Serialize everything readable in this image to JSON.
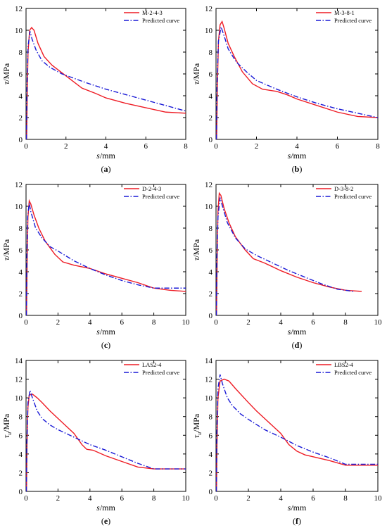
{
  "colors": {
    "measured": "#ee1c25",
    "predicted": "#1a1ad6"
  },
  "chart_data": [
    {
      "type": "line",
      "panel_label": "(a)",
      "xlabel": "s/mm",
      "ylabel": "τ/MPa",
      "xlim": [
        0,
        8
      ],
      "ylim": [
        0,
        12
      ],
      "xticks": [
        0,
        2,
        4,
        6,
        8
      ],
      "yticks": [
        0,
        2,
        4,
        6,
        8,
        10,
        12
      ],
      "legend_position": "top-right",
      "series": [
        {
          "name": "M-2-4-3",
          "style": "solid",
          "color": "#ee1c25",
          "points": [
            [
              0.03,
              0
            ],
            [
              0.06,
              4
            ],
            [
              0.1,
              8
            ],
            [
              0.18,
              10
            ],
            [
              0.28,
              10.25
            ],
            [
              0.4,
              10
            ],
            [
              0.6,
              8.8
            ],
            [
              0.9,
              7.6
            ],
            [
              1.3,
              6.8
            ],
            [
              1.8,
              6.1
            ],
            [
              2.3,
              5.4
            ],
            [
              2.8,
              4.7
            ],
            [
              3.5,
              4.2
            ],
            [
              4.0,
              3.8
            ],
            [
              5.0,
              3.3
            ],
            [
              6.0,
              2.9
            ],
            [
              7.0,
              2.5
            ],
            [
              8.0,
              2.4
            ]
          ]
        },
        {
          "name": "Predicted curve",
          "style": "dashdot",
          "color": "#1a1ad6",
          "points": [
            [
              0.02,
              0
            ],
            [
              0.05,
              5
            ],
            [
              0.1,
              8.5
            ],
            [
              0.2,
              9.9
            ],
            [
              0.3,
              9.2
            ],
            [
              0.5,
              8.2
            ],
            [
              0.8,
              7.2
            ],
            [
              1.2,
              6.6
            ],
            [
              1.8,
              6.0
            ],
            [
              3.0,
              5.2
            ],
            [
              4.0,
              4.6
            ],
            [
              5.0,
              4.1
            ],
            [
              6.0,
              3.6
            ],
            [
              7.0,
              3.1
            ],
            [
              8.0,
              2.6
            ]
          ]
        }
      ]
    },
    {
      "type": "line",
      "panel_label": "(b)",
      "xlabel": "s/mm",
      "ylabel": "τ/MPa",
      "xlim": [
        0,
        8
      ],
      "ylim": [
        0,
        12
      ],
      "xticks": [
        0,
        2,
        4,
        6,
        8
      ],
      "yticks": [
        0,
        2,
        4,
        6,
        8,
        10,
        12
      ],
      "legend_position": "top-right",
      "series": [
        {
          "name": "M-3-8-1",
          "style": "solid",
          "color": "#ee1c25",
          "points": [
            [
              0.03,
              0
            ],
            [
              0.07,
              5
            ],
            [
              0.12,
              9
            ],
            [
              0.2,
              10.5
            ],
            [
              0.3,
              10.8
            ],
            [
              0.4,
              10.2
            ],
            [
              0.6,
              8.8
            ],
            [
              0.9,
              7.6
            ],
            [
              1.3,
              6.2
            ],
            [
              1.8,
              5.1
            ],
            [
              2.3,
              4.6
            ],
            [
              3.0,
              4.4
            ],
            [
              3.5,
              4.1
            ],
            [
              4.0,
              3.7
            ],
            [
              5.0,
              3.1
            ],
            [
              6.0,
              2.5
            ],
            [
              7.0,
              2.1
            ],
            [
              8.0,
              2.0
            ]
          ]
        },
        {
          "name": "Predicted curve",
          "style": "dashdot",
          "color": "#1a1ad6",
          "points": [
            [
              0.02,
              0
            ],
            [
              0.05,
              5
            ],
            [
              0.12,
              9
            ],
            [
              0.25,
              10.3
            ],
            [
              0.4,
              9.5
            ],
            [
              0.6,
              8.3
            ],
            [
              1.0,
              7.1
            ],
            [
              1.5,
              6.2
            ],
            [
              2.0,
              5.4
            ],
            [
              3.0,
              4.6
            ],
            [
              4.0,
              3.9
            ],
            [
              5.0,
              3.3
            ],
            [
              6.0,
              2.8
            ],
            [
              7.0,
              2.4
            ],
            [
              8.0,
              2.0
            ]
          ]
        }
      ]
    },
    {
      "type": "line",
      "panel_label": "(c)",
      "xlabel": "s/mm",
      "ylabel": "τ/MPa",
      "xlim": [
        0,
        10
      ],
      "ylim": [
        0,
        12
      ],
      "xticks": [
        0,
        2,
        4,
        6,
        8,
        10
      ],
      "yticks": [
        0,
        2,
        4,
        6,
        8,
        10,
        12
      ],
      "legend_position": "top-right",
      "series": [
        {
          "name": "D-2-4-3",
          "style": "solid",
          "color": "#ee1c25",
          "points": [
            [
              0.03,
              0
            ],
            [
              0.07,
              5
            ],
            [
              0.12,
              9
            ],
            [
              0.2,
              10.5
            ],
            [
              0.3,
              10.2
            ],
            [
              0.5,
              9.2
            ],
            [
              0.8,
              8.0
            ],
            [
              1.2,
              6.8
            ],
            [
              1.8,
              5.6
            ],
            [
              2.3,
              4.9
            ],
            [
              3.0,
              4.6
            ],
            [
              4.0,
              4.3
            ],
            [
              5.0,
              3.8
            ],
            [
              6.0,
              3.4
            ],
            [
              7.0,
              3.0
            ],
            [
              8.0,
              2.5
            ],
            [
              9.0,
              2.3
            ],
            [
              10.0,
              2.2
            ]
          ]
        },
        {
          "name": "Predicted curve",
          "style": "dashdot",
          "color": "#1a1ad6",
          "points": [
            [
              0.02,
              0
            ],
            [
              0.05,
              5
            ],
            [
              0.1,
              9
            ],
            [
              0.2,
              10.3
            ],
            [
              0.3,
              9.5
            ],
            [
              0.6,
              8.0
            ],
            [
              1.0,
              7.1
            ],
            [
              1.5,
              6.3
            ],
            [
              2.0,
              5.9
            ],
            [
              3.0,
              5.0
            ],
            [
              4.0,
              4.3
            ],
            [
              5.0,
              3.7
            ],
            [
              6.0,
              3.2
            ],
            [
              7.0,
              2.8
            ],
            [
              8.0,
              2.5
            ],
            [
              9.0,
              2.5
            ],
            [
              10.0,
              2.5
            ]
          ]
        }
      ]
    },
    {
      "type": "line",
      "panel_label": "(d)",
      "xlabel": "s/mm",
      "ylabel": "τ/MPa",
      "xlim": [
        0,
        10
      ],
      "ylim": [
        0,
        12
      ],
      "xticks": [
        0,
        2,
        4,
        6,
        8,
        10
      ],
      "yticks": [
        0,
        2,
        4,
        6,
        8,
        10,
        12
      ],
      "legend_position": "top-right",
      "series": [
        {
          "name": "D-3-8-2",
          "style": "solid",
          "color": "#ee1c25",
          "points": [
            [
              0.03,
              0
            ],
            [
              0.07,
              5
            ],
            [
              0.12,
              9.5
            ],
            [
              0.2,
              11.2
            ],
            [
              0.3,
              11.0
            ],
            [
              0.5,
              9.8
            ],
            [
              0.8,
              8.5
            ],
            [
              1.2,
              7.2
            ],
            [
              1.8,
              6.0
            ],
            [
              2.3,
              5.2
            ],
            [
              3.0,
              4.8
            ],
            [
              4.0,
              4.1
            ],
            [
              5.0,
              3.5
            ],
            [
              6.0,
              3.0
            ],
            [
              7.0,
              2.6
            ],
            [
              8.0,
              2.3
            ],
            [
              9.0,
              2.2
            ]
          ]
        },
        {
          "name": "Predicted curve",
          "style": "dashdot",
          "color": "#1a1ad6",
          "points": [
            [
              0.02,
              0
            ],
            [
              0.05,
              5
            ],
            [
              0.12,
              9
            ],
            [
              0.25,
              10.8
            ],
            [
              0.4,
              10.0
            ],
            [
              0.7,
              8.5
            ],
            [
              1.2,
              7.1
            ],
            [
              1.8,
              6.1
            ],
            [
              2.5,
              5.5
            ],
            [
              3.5,
              4.8
            ],
            [
              4.5,
              4.1
            ],
            [
              5.5,
              3.5
            ],
            [
              6.5,
              2.9
            ],
            [
              7.5,
              2.4
            ],
            [
              8.5,
              2.2
            ]
          ]
        }
      ]
    },
    {
      "type": "line",
      "panel_label": "(e)",
      "xlabel": "s/mm",
      "ylabel": "τu/MPa",
      "xlim": [
        0,
        10
      ],
      "ylim": [
        0,
        14
      ],
      "xticks": [
        0,
        2,
        4,
        6,
        8,
        10
      ],
      "yticks": [
        0,
        2,
        4,
        6,
        8,
        10,
        12,
        14
      ],
      "legend_position": "top-right",
      "series": [
        {
          "name": "LAS2-4",
          "style": "solid",
          "color": "#ee1c25",
          "points": [
            [
              0.03,
              0
            ],
            [
              0.06,
              5
            ],
            [
              0.12,
              9
            ],
            [
              0.2,
              10.3
            ],
            [
              0.4,
              10.4
            ],
            [
              0.7,
              10.0
            ],
            [
              1.0,
              9.5
            ],
            [
              1.5,
              8.6
            ],
            [
              2.0,
              7.8
            ],
            [
              2.5,
              7.0
            ],
            [
              3.0,
              6.2
            ],
            [
              3.5,
              5.0
            ],
            [
              3.8,
              4.5
            ],
            [
              4.2,
              4.4
            ],
            [
              5.0,
              3.8
            ],
            [
              6.0,
              3.2
            ],
            [
              7.0,
              2.6
            ],
            [
              8.0,
              2.4
            ],
            [
              9.0,
              2.4
            ],
            [
              10.0,
              2.4
            ]
          ]
        },
        {
          "name": "Predicted curve",
          "style": "dashdot",
          "color": "#1a1ad6",
          "points": [
            [
              0.02,
              0
            ],
            [
              0.05,
              5
            ],
            [
              0.12,
              9.5
            ],
            [
              0.25,
              10.8
            ],
            [
              0.4,
              10.0
            ],
            [
              0.7,
              8.6
            ],
            [
              1.0,
              7.8
            ],
            [
              1.5,
              7.1
            ],
            [
              2.0,
              6.6
            ],
            [
              3.0,
              5.8
            ],
            [
              4.0,
              5.0
            ],
            [
              5.0,
              4.4
            ],
            [
              6.0,
              3.7
            ],
            [
              7.0,
              3.0
            ],
            [
              8.0,
              2.4
            ],
            [
              9.0,
              2.4
            ],
            [
              10.0,
              2.4
            ]
          ]
        }
      ]
    },
    {
      "type": "line",
      "panel_label": "(f)",
      "xlabel": "s/mm",
      "ylabel": "τu/MPa",
      "xlim": [
        0,
        10
      ],
      "ylim": [
        0,
        14
      ],
      "xticks": [
        0,
        2,
        4,
        6,
        8,
        10
      ],
      "yticks": [
        0,
        2,
        4,
        6,
        8,
        10,
        12,
        14
      ],
      "legend_position": "top-right",
      "series": [
        {
          "name": "LBS2-4",
          "style": "solid",
          "color": "#ee1c25",
          "points": [
            [
              0.03,
              0
            ],
            [
              0.06,
              5
            ],
            [
              0.12,
              10
            ],
            [
              0.25,
              11.8
            ],
            [
              0.5,
              12.0
            ],
            [
              0.8,
              11.8
            ],
            [
              1.2,
              11.0
            ],
            [
              2.0,
              9.5
            ],
            [
              2.5,
              8.6
            ],
            [
              3.0,
              7.8
            ],
            [
              3.5,
              7.0
            ],
            [
              4.0,
              6.2
            ],
            [
              4.5,
              5.0
            ],
            [
              5.0,
              4.3
            ],
            [
              5.5,
              3.9
            ],
            [
              6.0,
              3.7
            ],
            [
              7.0,
              3.3
            ],
            [
              8.0,
              2.8
            ],
            [
              9.0,
              2.8
            ],
            [
              10.0,
              2.8
            ]
          ]
        },
        {
          "name": "Predicted curve",
          "style": "dashdot",
          "color": "#1a1ad6",
          "points": [
            [
              0.02,
              0
            ],
            [
              0.05,
              6
            ],
            [
              0.12,
              11
            ],
            [
              0.25,
              12.5
            ],
            [
              0.4,
              11.5
            ],
            [
              0.7,
              10.0
            ],
            [
              1.0,
              9.2
            ],
            [
              1.5,
              8.3
            ],
            [
              2.0,
              7.7
            ],
            [
              3.0,
              6.6
            ],
            [
              4.0,
              5.8
            ],
            [
              5.0,
              4.9
            ],
            [
              6.0,
              4.2
            ],
            [
              7.0,
              3.6
            ],
            [
              8.0,
              2.9
            ],
            [
              9.0,
              2.9
            ],
            [
              10.0,
              2.9
            ]
          ]
        }
      ]
    }
  ]
}
